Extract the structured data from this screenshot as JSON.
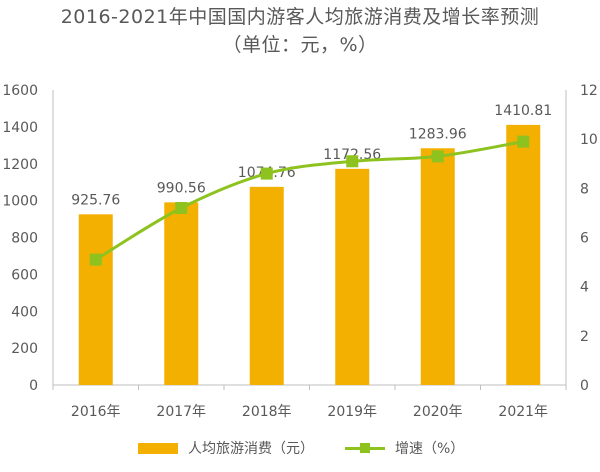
{
  "chart_data": {
    "type": "bar",
    "title": "2016-2021年中国国内游客人均旅游消费及增长率预测",
    "subtitle": "（单位：元，%）",
    "categories": [
      "2016年",
      "2017年",
      "2018年",
      "2019年",
      "2020年",
      "2021年"
    ],
    "series": [
      {
        "name": "人均旅游消费（元）",
        "type": "bar",
        "axis": "left",
        "color": "#F4B000",
        "values": [
          925.76,
          990.56,
          1074.76,
          1172.56,
          1283.96,
          1410.81
        ],
        "labels": [
          "925.76",
          "990.56",
          "1074.76",
          "1172.56",
          "1283.96",
          "1410.81"
        ]
      },
      {
        "name": "增速（%）",
        "type": "line",
        "axis": "right",
        "color": "#8DC21F",
        "values": [
          5.1,
          7.2,
          8.6,
          9.1,
          9.3,
          9.9
        ]
      }
    ],
    "left_axis": {
      "min": 0,
      "max": 1600,
      "ticks": [
        "0",
        "200",
        "400",
        "600",
        "800",
        "1000",
        "1200",
        "1400",
        "1600"
      ]
    },
    "right_axis": {
      "min": 0,
      "max": 12,
      "ticks": [
        "0",
        "2",
        "4",
        "6",
        "8",
        "10",
        "12"
      ]
    },
    "grid": false,
    "legend_position": "bottom"
  }
}
